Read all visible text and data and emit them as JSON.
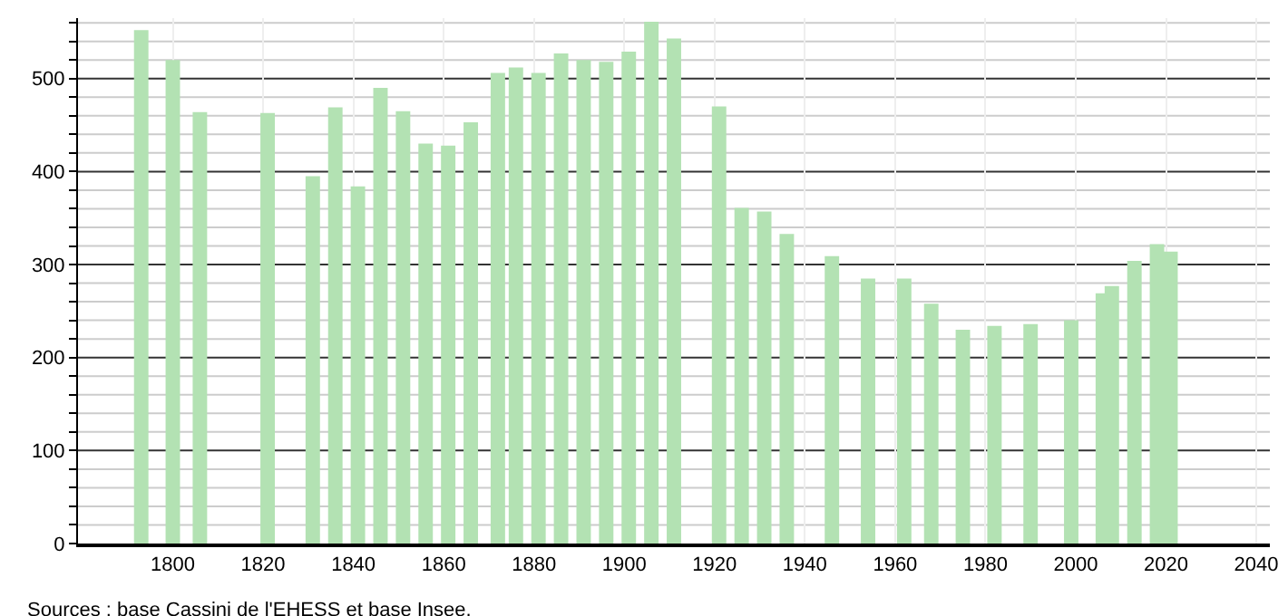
{
  "chart_data": {
    "type": "bar",
    "x": [
      1793,
      1800,
      1806,
      1821,
      1831,
      1836,
      1841,
      1846,
      1851,
      1856,
      1861,
      1866,
      1872,
      1876,
      1881,
      1886,
      1891,
      1896,
      1901,
      1906,
      1911,
      1921,
      1926,
      1931,
      1936,
      1946,
      1954,
      1962,
      1968,
      1975,
      1982,
      1990,
      1999,
      2006,
      2008,
      2013,
      2018,
      2021
    ],
    "values": [
      552,
      520,
      464,
      463,
      395,
      469,
      384,
      490,
      465,
      430,
      428,
      453,
      506,
      512,
      506,
      527,
      520,
      518,
      529,
      561,
      543,
      470,
      361,
      357,
      333,
      309,
      285,
      285,
      258,
      230,
      234,
      236,
      240,
      269,
      277,
      304,
      322,
      314
    ],
    "color": "#b3e2b3",
    "xlim": [
      1779,
      2043
    ],
    "xticks": [
      1800,
      1820,
      1840,
      1860,
      1880,
      1900,
      1920,
      1940,
      1960,
      1980,
      2000,
      2020,
      2040
    ],
    "ylim": [
      0,
      565
    ],
    "yticks": [
      0,
      {
        "value": 20,
        "label": null
      },
      {
        "value": 40,
        "label": null
      },
      {
        "value": 60,
        "label": null
      },
      {
        "value": 80,
        "label": null
      },
      100,
      {
        "value": 120,
        "label": null
      },
      {
        "value": 140,
        "label": null
      },
      {
        "value": 160,
        "label": null
      },
      {
        "value": 180,
        "label": null
      },
      200,
      {
        "value": 220,
        "label": null
      },
      {
        "value": 240,
        "label": null
      },
      {
        "value": 260,
        "label": null
      },
      {
        "value": 280,
        "label": null
      },
      300,
      {
        "value": 320,
        "label": null
      },
      {
        "value": 340,
        "label": null
      },
      {
        "value": 360,
        "label": null
      },
      {
        "value": 380,
        "label": null
      },
      400,
      {
        "value": 420,
        "label": null
      },
      {
        "value": 440,
        "label": null
      },
      {
        "value": 460,
        "label": null
      },
      {
        "value": 480,
        "label": null
      },
      500,
      {
        "value": 520,
        "label": null
      },
      {
        "value": 540,
        "label": null
      },
      {
        "value": 560,
        "label": null
      }
    ],
    "grid": true,
    "annotations": [
      "Sources : base Cassini de l'EHESS et base Insee."
    ]
  }
}
